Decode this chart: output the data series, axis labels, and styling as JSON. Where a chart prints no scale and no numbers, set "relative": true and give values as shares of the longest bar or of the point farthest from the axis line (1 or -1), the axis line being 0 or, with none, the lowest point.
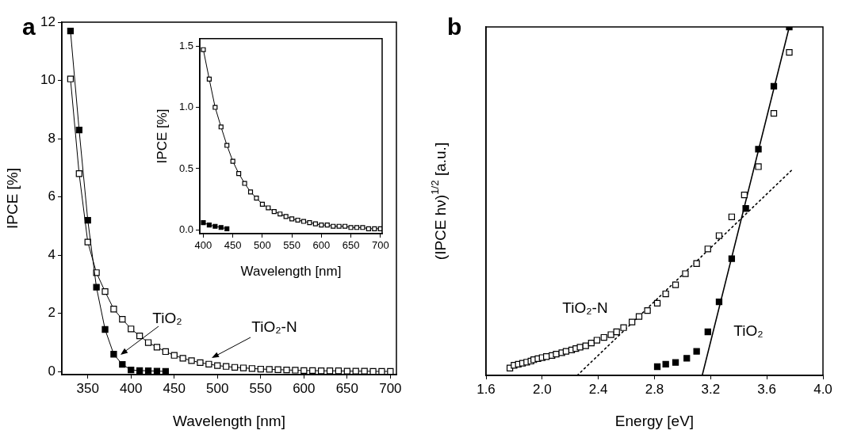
{
  "chart_data": [
    {
      "type": "line",
      "title": "a",
      "xlabel": "Wavelength [nm]",
      "ylabel": "IPCE [%]",
      "xlim": [
        320,
        707
      ],
      "xticks": [
        350,
        400,
        450,
        500,
        550,
        600,
        650,
        700
      ],
      "ylim": [
        -0.1,
        12
      ],
      "yticks": [
        0,
        2,
        4,
        6,
        8,
        10,
        12
      ],
      "marker": "square",
      "annotations": [
        "TiO₂",
        "TiO₂-N"
      ],
      "series": [
        {
          "color": "#000000",
          "x": [
            330,
            340,
            350,
            360,
            370,
            380,
            390,
            400,
            410,
            420,
            430,
            440
          ],
          "values": [
            11.7,
            8.3,
            5.2,
            2.9,
            1.45,
            0.6,
            0.25,
            0.06,
            0.04,
            0.03,
            0.02,
            0.01
          ]
        },
        {
          "color": "#000000",
          "x": [
            330,
            340,
            350,
            360,
            370,
            380,
            390,
            400,
            410,
            420,
            430,
            440,
            450,
            460,
            470,
            480,
            490,
            500,
            510,
            520,
            530,
            540,
            550,
            560,
            570,
            580,
            590,
            600,
            610,
            620,
            630,
            640,
            650,
            660,
            670,
            680,
            690,
            700
          ],
          "values": [
            10.05,
            6.8,
            4.45,
            3.4,
            2.75,
            2.15,
            1.8,
            1.47,
            1.23,
            1.0,
            0.84,
            0.69,
            0.56,
            0.46,
            0.38,
            0.31,
            0.26,
            0.21,
            0.18,
            0.15,
            0.13,
            0.11,
            0.09,
            0.08,
            0.07,
            0.06,
            0.05,
            0.04,
            0.04,
            0.03,
            0.03,
            0.03,
            0.02,
            0.02,
            0.02,
            0.01,
            0.01,
            0.01
          ]
        }
      ]
    },
    {
      "type": "line",
      "xlabel": "Wavelength [nm]",
      "ylabel": "IPCE [%]",
      "xlim": [
        394,
        703
      ],
      "xticks": [
        400,
        450,
        500,
        550,
        600,
        650,
        700
      ],
      "ylim": [
        -0.03,
        1.56
      ],
      "yticks": [
        {
          "value": 0,
          "label": "0.0"
        },
        0.5,
        {
          "value": 1,
          "label": "1.0"
        },
        1.5
      ],
      "marker": "square",
      "series": [
        {
          "color": "#000000",
          "x": [
            400,
            410,
            420,
            430,
            440
          ],
          "values": [
            0.06,
            0.04,
            0.03,
            0.02,
            0.01
          ]
        },
        {
          "color": "#000000",
          "x": [
            400,
            410,
            420,
            430,
            440,
            450,
            460,
            470,
            480,
            490,
            500,
            510,
            520,
            530,
            540,
            550,
            560,
            570,
            580,
            590,
            600,
            610,
            620,
            630,
            640,
            650,
            660,
            670,
            680,
            690,
            700
          ],
          "values": [
            1.47,
            1.23,
            1.0,
            0.84,
            0.69,
            0.56,
            0.46,
            0.38,
            0.31,
            0.26,
            0.21,
            0.18,
            0.15,
            0.13,
            0.11,
            0.09,
            0.08,
            0.07,
            0.06,
            0.05,
            0.04,
            0.04,
            0.03,
            0.03,
            0.03,
            0.02,
            0.02,
            0.02,
            0.01,
            0.01,
            0.01
          ]
        }
      ]
    },
    {
      "type": "scatter",
      "title": "b",
      "xlabel": "Energy [eV]",
      "ylabel": "(IPCE hν)$^{1/2}$ [a.u.]",
      "relative": true,
      "xlim": [
        1.6,
        4.0
      ],
      "xticks": [
        1.6,
        {
          "value": 2,
          "label": "2.0"
        },
        2.4,
        2.8,
        3.2,
        3.6,
        {
          "value": 4,
          "label": "4.0"
        }
      ],
      "marker": "square",
      "annotations": [
        "TiO₂-N",
        "TiO₂"
      ],
      "series": [
        {
          "color": "#000000",
          "x": [
            2.82,
            2.88,
            2.95,
            3.03,
            3.1,
            3.18,
            3.26,
            3.35,
            3.45,
            3.54,
            3.65,
            3.76
          ],
          "values": [
            0.025,
            0.032,
            0.037,
            0.049,
            0.069,
            0.125,
            0.211,
            0.335,
            0.479,
            0.649,
            0.83,
            1.0
          ]
        },
        {
          "color": "#000000",
          "x": [
            1.77,
            1.8,
            1.83,
            1.86,
            1.89,
            1.92,
            1.94,
            1.97,
            2.0,
            2.03,
            2.07,
            2.1,
            2.14,
            2.17,
            2.21,
            2.24,
            2.27,
            2.31,
            2.35,
            2.39,
            2.44,
            2.49,
            2.53,
            2.58,
            2.64,
            2.69,
            2.75,
            2.82,
            2.88,
            2.95,
            3.02,
            3.1,
            3.18,
            3.26,
            3.35,
            3.44,
            3.54,
            3.65,
            3.76
          ],
          "values": [
            0.021,
            0.029,
            0.032,
            0.035,
            0.038,
            0.041,
            0.045,
            0.048,
            0.051,
            0.054,
            0.057,
            0.061,
            0.065,
            0.069,
            0.073,
            0.077,
            0.081,
            0.085,
            0.093,
            0.101,
            0.109,
            0.117,
            0.125,
            0.137,
            0.153,
            0.169,
            0.186,
            0.207,
            0.234,
            0.26,
            0.292,
            0.321,
            0.363,
            0.401,
            0.455,
            0.518,
            0.599,
            0.752,
            0.927
          ]
        },
        {
          "type": "line",
          "color": "#000000",
          "marker": "none",
          "x": [
            3.14,
            3.76
          ],
          "values": [
            0,
            1.0
          ]
        },
        {
          "type": "line",
          "color": "#000000",
          "marker": "none",
          "line_style": "dotted",
          "x": [
            2.25,
            3.78
          ],
          "values": [
            0,
            0.59
          ]
        }
      ]
    }
  ]
}
